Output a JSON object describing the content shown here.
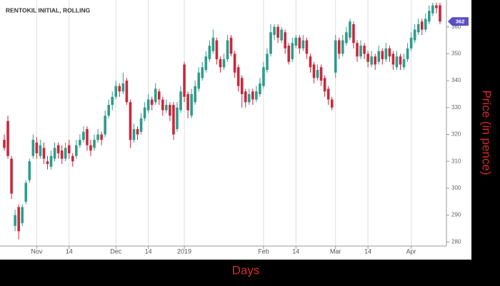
{
  "chart_data": {
    "type": "candlestick",
    "title": "RENTOKIL INITIAL, ROLLING",
    "x_label": "Days",
    "y_label": "Price (in pence)",
    "categories": [
      null,
      null,
      null,
      null,
      null,
      null,
      null,
      null,
      null,
      "Nov",
      null,
      null,
      null,
      null,
      null,
      null,
      null,
      null,
      "14",
      null,
      null,
      null,
      null,
      null,
      null,
      null,
      null,
      null,
      null,
      null,
      null,
      "Dec",
      null,
      null,
      null,
      null,
      null,
      null,
      null,
      null,
      "14",
      null,
      null,
      null,
      null,
      null,
      null,
      null,
      null,
      null,
      "2019",
      null,
      null,
      null,
      null,
      null,
      null,
      null,
      null,
      null,
      null,
      null,
      null,
      null,
      null,
      null,
      null,
      null,
      null,
      null,
      null,
      null,
      "Feb",
      null,
      null,
      null,
      null,
      null,
      null,
      null,
      null,
      "14",
      null,
      null,
      null,
      null,
      null,
      null,
      null,
      null,
      null,
      null,
      "Mar",
      null,
      null,
      null,
      null,
      null,
      null,
      null,
      null,
      "14",
      null,
      null,
      null,
      null,
      null,
      null,
      null,
      null,
      null,
      null,
      null,
      "Apr",
      null,
      null,
      null,
      null,
      null,
      null,
      null,
      null
    ],
    "open": [
      318,
      325,
      311,
      286,
      293,
      287,
      295,
      303,
      312,
      317,
      312,
      315,
      310,
      308,
      311,
      316,
      314,
      311,
      316,
      312,
      312,
      316,
      318,
      322,
      316,
      315,
      318,
      320,
      320,
      327,
      331,
      334,
      338,
      336,
      340,
      332,
      318,
      322,
      321,
      326,
      329,
      333,
      332,
      336,
      333,
      329,
      331,
      331,
      322,
      329,
      346,
      335,
      327,
      332,
      337,
      341,
      344,
      348,
      351,
      355,
      348,
      345,
      348,
      356,
      350,
      345,
      341,
      336,
      332,
      336,
      333,
      335,
      338,
      344,
      350,
      357,
      360,
      355,
      358,
      353,
      348,
      353,
      356,
      352,
      355,
      349,
      346,
      341,
      345,
      341,
      337,
      333,
      343,
      355,
      350,
      354,
      356,
      361,
      354,
      349,
      353,
      350,
      346,
      349,
      347,
      351,
      348,
      352,
      350,
      345,
      349,
      345,
      348,
      352,
      355,
      358,
      362,
      359,
      362,
      365,
      368,
      368
    ],
    "high": [
      320,
      327,
      312,
      292,
      294,
      294,
      303,
      311,
      320,
      319,
      318,
      317,
      312,
      314,
      317,
      317,
      316,
      317,
      318,
      313,
      318,
      320,
      323,
      323,
      318,
      320,
      322,
      321,
      329,
      333,
      336,
      340,
      339,
      343,
      341,
      333,
      324,
      323,
      328,
      332,
      335,
      334,
      339,
      337,
      334,
      333,
      332,
      332,
      332,
      338,
      347,
      336,
      337,
      340,
      345,
      347,
      351,
      355,
      359,
      356,
      349,
      350,
      357,
      357,
      351,
      346,
      342,
      337,
      337,
      337,
      338,
      341,
      347,
      352,
      361,
      361,
      361,
      360,
      359,
      354,
      356,
      357,
      357,
      357,
      356,
      350,
      347,
      346,
      346,
      342,
      338,
      334,
      357,
      356,
      357,
      360,
      363,
      362,
      355,
      355,
      354,
      351,
      351,
      350,
      353,
      352,
      354,
      353,
      351,
      351,
      350,
      350,
      354,
      358,
      361,
      363,
      363,
      365,
      368,
      369,
      369,
      369
    ],
    "low": [
      314,
      311,
      296,
      284,
      281,
      286,
      294,
      302,
      311,
      311,
      311,
      309,
      307,
      307,
      310,
      311,
      309,
      310,
      311,
      308,
      311,
      315,
      317,
      314,
      312,
      314,
      317,
      316,
      319,
      326,
      329,
      333,
      334,
      335,
      331,
      315,
      317,
      318,
      320,
      325,
      328,
      329,
      331,
      331,
      327,
      328,
      325,
      318,
      321,
      328,
      332,
      326,
      326,
      331,
      336,
      340,
      343,
      347,
      350,
      346,
      343,
      344,
      347,
      349,
      341,
      336,
      330,
      330,
      331,
      331,
      332,
      334,
      337,
      343,
      349,
      355,
      354,
      354,
      350,
      346,
      347,
      352,
      350,
      351,
      348,
      343,
      339,
      340,
      338,
      334,
      331,
      329,
      341,
      348,
      349,
      353,
      355,
      352,
      347,
      348,
      348,
      345,
      345,
      344,
      346,
      346,
      347,
      347,
      344,
      344,
      344,
      344,
      347,
      351,
      354,
      357,
      357,
      358,
      361,
      364,
      365,
      361
    ],
    "close": [
      315,
      312,
      298,
      290,
      284,
      293,
      302,
      310,
      318,
      313,
      316,
      311,
      309,
      312,
      315,
      313,
      311,
      315,
      313,
      310,
      316,
      318,
      321,
      316,
      314,
      318,
      320,
      318,
      327,
      331,
      334,
      338,
      336,
      339,
      332,
      318,
      322,
      320,
      326,
      330,
      333,
      331,
      337,
      333,
      329,
      331,
      327,
      320,
      330,
      336,
      334,
      329,
      335,
      338,
      343,
      345,
      349,
      353,
      356,
      348,
      345,
      348,
      355,
      350,
      343,
      338,
      335,
      332,
      335,
      333,
      336,
      339,
      345,
      350,
      358,
      360,
      356,
      359,
      352,
      347,
      354,
      356,
      352,
      355,
      350,
      345,
      341,
      344,
      340,
      336,
      333,
      330,
      355,
      350,
      355,
      358,
      362,
      354,
      349,
      353,
      350,
      347,
      349,
      346,
      351,
      348,
      352,
      349,
      346,
      349,
      346,
      348,
      352,
      356,
      359,
      361,
      359,
      363,
      366,
      368,
      367,
      362
    ],
    "up_color": "#2e9c8a",
    "down_color": "#c8283c",
    "last_price": 362,
    "last_price_color": "#5b4fc4",
    "ylim": [
      278.5,
      370
    ],
    "yticks": [
      280,
      290,
      300,
      310,
      320,
      330,
      340,
      350,
      360
    ],
    "grid": true
  }
}
